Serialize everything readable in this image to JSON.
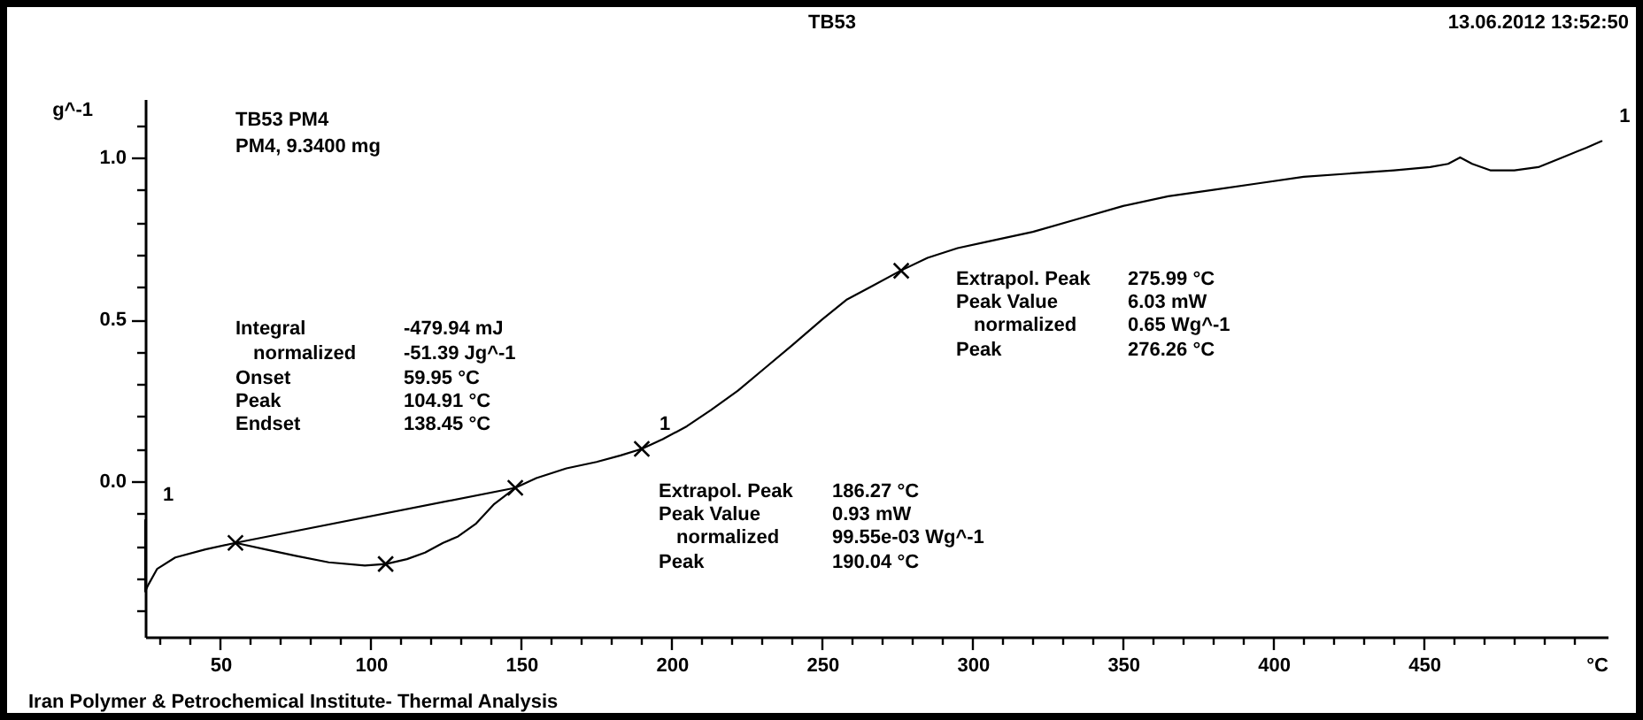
{
  "chart_data": {
    "type": "line",
    "title": "TB53",
    "xlabel": "°C",
    "ylabel": "g^-1",
    "xlim": [
      25,
      511
    ],
    "ylim": [
      -0.48,
      1.18
    ],
    "xticks": [
      {
        "value": 30,
        "label": null
      },
      {
        "value": 40,
        "label": null
      },
      50,
      {
        "value": 60,
        "label": null
      },
      {
        "value": 70,
        "label": null
      },
      {
        "value": 80,
        "label": null
      },
      {
        "value": 90,
        "label": null
      },
      100,
      {
        "value": 110,
        "label": null
      },
      {
        "value": 120,
        "label": null
      },
      {
        "value": 130,
        "label": null
      },
      {
        "value": 140,
        "label": null
      },
      150,
      {
        "value": 160,
        "label": null
      },
      {
        "value": 170,
        "label": null
      },
      {
        "value": 180,
        "label": null
      },
      {
        "value": 190,
        "label": null
      },
      200,
      {
        "value": 210,
        "label": null
      },
      {
        "value": 220,
        "label": null
      },
      {
        "value": 230,
        "label": null
      },
      {
        "value": 240,
        "label": null
      },
      250,
      {
        "value": 260,
        "label": null
      },
      {
        "value": 270,
        "label": null
      },
      {
        "value": 280,
        "label": null
      },
      {
        "value": 290,
        "label": null
      },
      300,
      {
        "value": 310,
        "label": null
      },
      {
        "value": 320,
        "label": null
      },
      {
        "value": 330,
        "label": null
      },
      {
        "value": 340,
        "label": null
      },
      350,
      {
        "value": 360,
        "label": null
      },
      {
        "value": 370,
        "label": null
      },
      {
        "value": 380,
        "label": null
      },
      {
        "value": 390,
        "label": null
      },
      400,
      {
        "value": 410,
        "label": null
      },
      {
        "value": 420,
        "label": null
      },
      {
        "value": 430,
        "label": null
      },
      {
        "value": 440,
        "label": null
      },
      450,
      {
        "value": 460,
        "label": null
      },
      {
        "value": 470,
        "label": null
      },
      {
        "value": 480,
        "label": null
      },
      {
        "value": 490,
        "label": null
      },
      {
        "value": 500,
        "label": null
      }
    ],
    "yticks": [
      {
        "value": -0.4,
        "label": null
      },
      {
        "value": -0.3,
        "label": null
      },
      {
        "value": -0.2,
        "label": null
      },
      {
        "value": -0.1,
        "label": null
      },
      {
        "value": 0,
        "label": "0.0"
      },
      {
        "value": 0.1,
        "label": null
      },
      {
        "value": 0.2,
        "label": null
      },
      {
        "value": 0.3,
        "label": null
      },
      {
        "value": 0.4,
        "label": null
      },
      {
        "value": 0.5,
        "label": "0.5"
      },
      {
        "value": 0.6,
        "label": null
      },
      {
        "value": 0.7,
        "label": null
      },
      {
        "value": 0.8,
        "label": null
      },
      {
        "value": 0.9,
        "label": null
      },
      {
        "value": 1,
        "label": "1.0"
      },
      {
        "value": 1.1,
        "label": null
      }
    ],
    "series": [
      {
        "color": "#000000",
        "x": [
          25,
          25,
          26,
          29,
          35,
          45,
          55,
          65,
          75,
          86,
          98,
          105,
          112,
          118,
          124,
          129,
          135,
          141,
          148,
          155,
          165,
          175,
          183,
          190,
          197,
          205,
          213,
          222,
          231,
          240,
          250,
          258,
          266,
          276,
          285,
          295,
          305,
          320,
          335,
          350,
          365,
          380,
          395,
          410,
          425,
          440,
          452,
          458,
          462,
          466,
          472,
          480,
          488,
          496,
          504,
          509
        ],
        "values": [
          -0.12,
          -0.34,
          -0.32,
          -0.27,
          -0.235,
          -0.21,
          -0.19,
          -0.21,
          -0.23,
          -0.25,
          -0.26,
          -0.255,
          -0.24,
          -0.22,
          -0.19,
          -0.17,
          -0.13,
          -0.07,
          -0.02,
          0.01,
          0.04,
          0.06,
          0.08,
          0.1,
          0.13,
          0.17,
          0.22,
          0.28,
          0.35,
          0.42,
          0.5,
          0.56,
          0.6,
          0.65,
          0.69,
          0.72,
          0.74,
          0.77,
          0.81,
          0.85,
          0.88,
          0.9,
          0.92,
          0.94,
          0.95,
          0.96,
          0.97,
          0.98,
          1.0,
          0.98,
          0.96,
          0.96,
          0.97,
          1.0,
          1.03,
          1.05
        ]
      },
      {
        "color": "#000000",
        "x": [
          55,
          148
        ],
        "values": [
          -0.19,
          -0.02
        ]
      },
      {
        "type": "scatter",
        "color": "#000000",
        "marker": "cross",
        "x": [
          55,
          104.91,
          148,
          190.04,
          276.26
        ],
        "values": [
          -0.19,
          -0.255,
          -0.02,
          0.1,
          0.65
        ]
      }
    ],
    "annotations": [
      "13.06.2012 13:52:50",
      "Iran Polymer & Petrochemical Institute- Thermal Analysis",
      "TB53 PM4",
      "PM4, 9.3400 mg",
      "Integral",
      "-479.94 mJ",
      "normalized",
      "-51.39 Jg^-1",
      "Onset",
      "59.95 °C",
      "Peak",
      "104.91 °C",
      "Endset",
      "138.45 °C",
      "Extrapol. Peak",
      "186.27 °C",
      "Peak Value",
      "0.93 mW",
      "normalized",
      "99.55e-03 Wg^-1",
      "Peak",
      "190.04 °C",
      "Extrapol. Peak",
      "275.99 °C",
      "Peak Value",
      "6.03 mW",
      "normalized",
      "0.65 Wg^-1",
      "Peak",
      "276.26 °C",
      {
        "text": "1",
        "x": 25,
        "y": -0.12
      },
      {
        "text": "1",
        "x": 190.04,
        "y": 0.1
      },
      {
        "text": "1",
        "x": 509,
        "y": 1.05
      }
    ]
  }
}
